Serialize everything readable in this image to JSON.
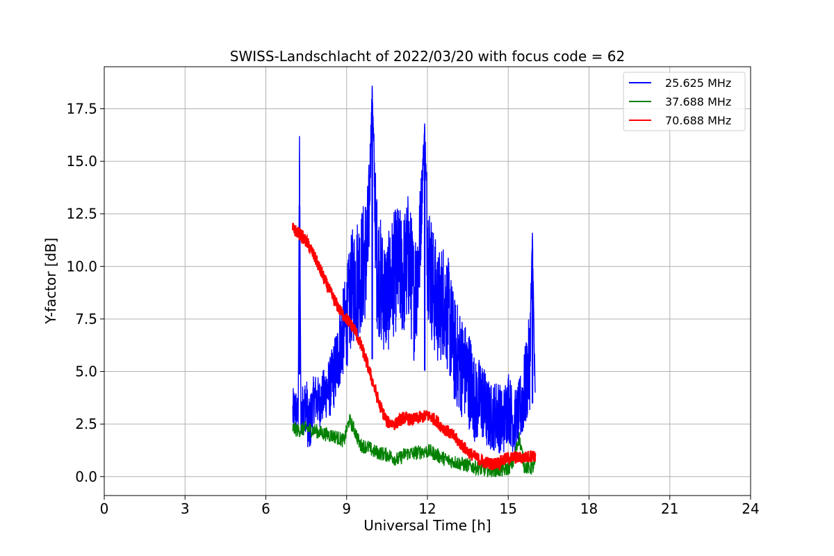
{
  "chart_data": {
    "type": "line",
    "title": "SWISS-Landschlacht of 2022/03/20 with focus code = 62",
    "xlabel": "Universal Time [h]",
    "ylabel": "Y-factor [dB]",
    "xlim": [
      0,
      24
    ],
    "ylim": [
      -0.9,
      19.5
    ],
    "xticks": [
      0,
      3,
      6,
      9,
      12,
      15,
      18,
      21,
      24
    ],
    "yticks": [
      0.0,
      2.5,
      5.0,
      7.5,
      10.0,
      12.5,
      15.0,
      17.5
    ],
    "xtick_labels": [
      "0",
      "3",
      "6",
      "9",
      "12",
      "15",
      "18",
      "21",
      "24"
    ],
    "ytick_labels": [
      "0.0",
      "2.5",
      "5.0",
      "7.5",
      "10.0",
      "12.5",
      "15.0",
      "17.5"
    ],
    "grid": true,
    "legend_position": "top-right",
    "series": [
      {
        "name": "25.625 MHz",
        "color": "#0000ff",
        "x": [
          7.0,
          7.1,
          7.2,
          7.25,
          7.3,
          7.5,
          7.6,
          7.8,
          8.0,
          8.2,
          8.4,
          8.6,
          8.8,
          9.0,
          9.2,
          9.4,
          9.6,
          9.8,
          9.95,
          10.1,
          10.3,
          10.5,
          10.7,
          10.9,
          11.1,
          11.3,
          11.5,
          11.7,
          11.9,
          12.0,
          12.2,
          12.4,
          12.6,
          12.8,
          13.0,
          13.2,
          13.4,
          13.6,
          13.8,
          14.0,
          14.2,
          14.4,
          14.6,
          14.8,
          15.0,
          15.2,
          15.4,
          15.6,
          15.8,
          15.9,
          16.0
        ],
        "y": [
          3.0,
          3.3,
          2.8,
          16.2,
          3.0,
          3.5,
          2.2,
          3.8,
          3.5,
          4.0,
          4.3,
          5.2,
          6.5,
          7.5,
          9.0,
          9.5,
          10.0,
          11.0,
          18.6,
          10.5,
          9.0,
          8.5,
          9.5,
          10.0,
          9.5,
          10.5,
          8.5,
          10.5,
          16.8,
          11.0,
          9.0,
          8.0,
          8.5,
          7.5,
          6.0,
          5.5,
          5.0,
          4.5,
          3.5,
          3.8,
          3.0,
          2.8,
          3.0,
          2.5,
          3.5,
          2.5,
          3.0,
          4.0,
          5.5,
          11.6,
          3.0
        ],
        "band": [
          1.2,
          1.0,
          0.9,
          0.0,
          1.2,
          1.4,
          1.5,
          1.2,
          1.2,
          1.3,
          1.5,
          1.8,
          2.0,
          2.4,
          2.8,
          3.0,
          3.0,
          3.2,
          0.0,
          3.3,
          3.0,
          2.8,
          3.0,
          3.0,
          3.0,
          3.2,
          3.0,
          3.0,
          0.0,
          3.2,
          3.0,
          2.8,
          2.8,
          2.8,
          2.6,
          2.6,
          2.4,
          2.4,
          2.0,
          2.0,
          1.8,
          1.6,
          1.8,
          1.6,
          1.8,
          1.5,
          1.6,
          2.0,
          2.4,
          0.0,
          1.8
        ]
      },
      {
        "name": "37.688 MHz",
        "color": "#008000",
        "x": [
          7.0,
          7.2,
          7.5,
          7.8,
          8.0,
          8.3,
          8.6,
          8.9,
          9.1,
          9.3,
          9.5,
          9.8,
          10.0,
          10.3,
          10.6,
          10.9,
          11.2,
          11.5,
          11.8,
          12.1,
          12.4,
          12.7,
          13.0,
          13.3,
          13.6,
          13.9,
          14.2,
          14.5,
          14.8,
          15.0,
          15.2,
          15.4,
          15.6,
          15.8,
          16.0
        ],
        "y": [
          2.3,
          2.2,
          2.3,
          2.2,
          2.1,
          2.0,
          1.9,
          1.7,
          2.7,
          2.2,
          1.5,
          1.4,
          1.2,
          1.1,
          1.0,
          0.8,
          1.1,
          1.1,
          1.2,
          1.2,
          1.0,
          0.8,
          0.7,
          0.6,
          0.5,
          0.4,
          0.3,
          0.3,
          0.3,
          0.4,
          0.7,
          1.9,
          0.5,
          0.4,
          0.5
        ]
      },
      {
        "name": "70.688 MHz",
        "color": "#ff0000",
        "x": [
          7.0,
          7.3,
          7.6,
          7.9,
          8.2,
          8.5,
          8.8,
          9.0,
          9.3,
          9.6,
          9.9,
          10.2,
          10.5,
          10.8,
          11.1,
          11.4,
          11.7,
          12.0,
          12.3,
          12.6,
          12.9,
          13.2,
          13.5,
          13.8,
          14.1,
          14.4,
          14.7,
          15.0,
          15.3,
          15.6,
          15.9,
          16.0
        ],
        "y": [
          11.8,
          11.5,
          11.0,
          10.2,
          9.3,
          8.5,
          7.8,
          7.5,
          7.0,
          6.0,
          4.8,
          3.5,
          2.6,
          2.5,
          2.8,
          2.7,
          2.8,
          2.9,
          2.7,
          2.3,
          2.0,
          1.6,
          1.2,
          0.9,
          0.7,
          0.6,
          0.7,
          0.9,
          0.9,
          0.9,
          1.0,
          1.0
        ]
      }
    ]
  }
}
